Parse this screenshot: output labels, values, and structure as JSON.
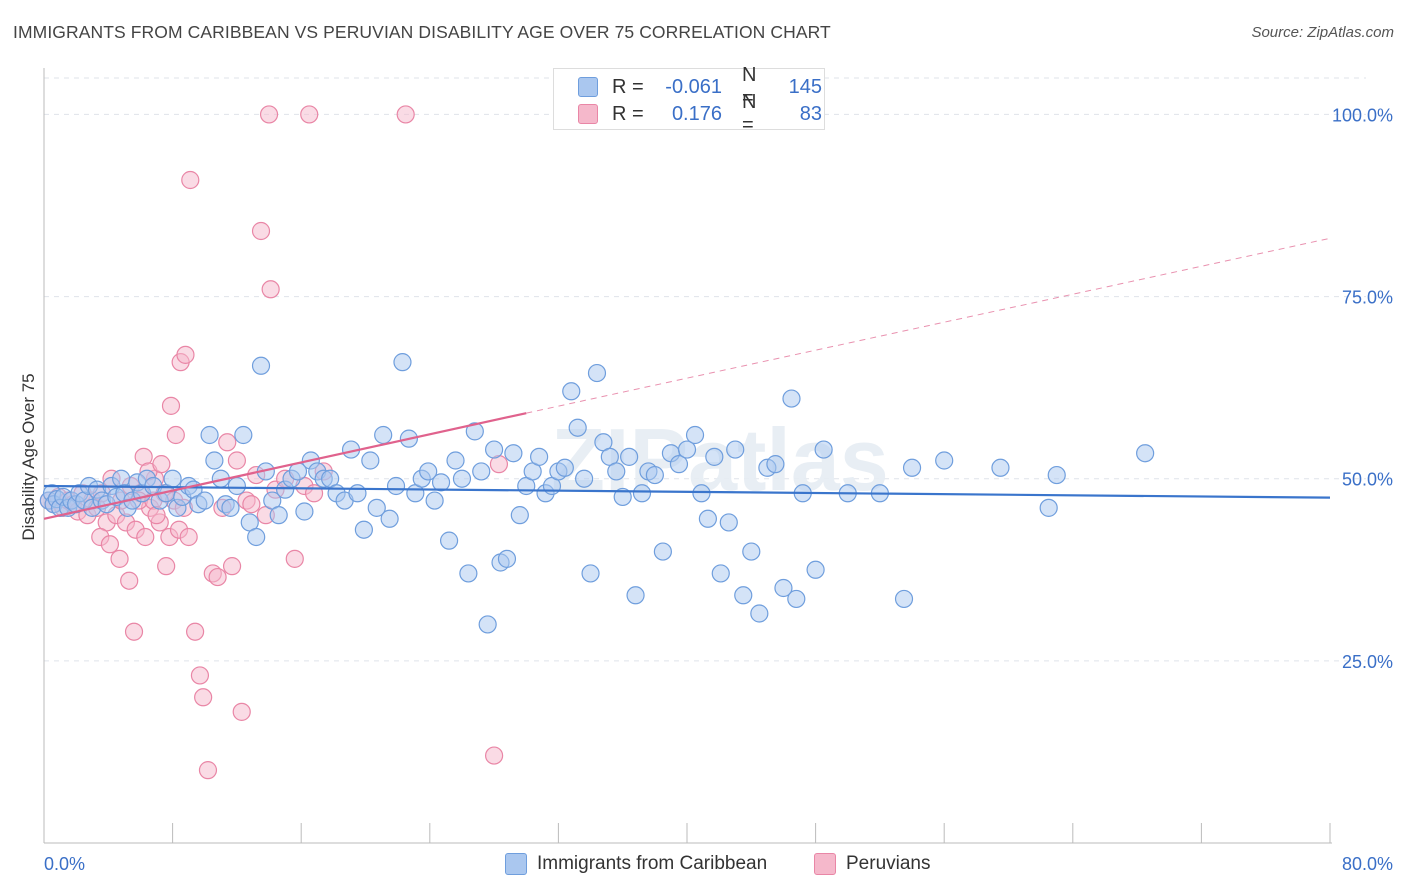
{
  "title": "IMMIGRANTS FROM CARIBBEAN VS PERUVIAN DISABILITY AGE OVER 75 CORRELATION CHART",
  "source": "Source: ZipAtlas.com",
  "watermark": "ZIPatlas",
  "legend": {
    "rows": [
      {
        "r_label": "R =",
        "r_value": "-0.061",
        "n_label": "N =",
        "n_value": "145"
      },
      {
        "r_label": "R =",
        "r_value": "0.176",
        "n_label": "N =",
        "n_value": "83"
      }
    ]
  },
  "chart_data": {
    "type": "scatter",
    "xlabel": "",
    "ylabel": "Disability Age Over 75",
    "x_tick_labels": [
      "0.0%",
      "80.0%"
    ],
    "y_tick_labels": [
      "100.0%",
      "75.0%",
      "50.0%",
      "25.0%"
    ],
    "xlim": [
      0,
      80
    ],
    "ylim": [
      0,
      105
    ],
    "y_ticks": [
      100,
      75,
      50,
      25
    ],
    "grid": true,
    "colors": {
      "caribbean_fill": "#aac7ef",
      "caribbean_stroke": "#6f9edd",
      "caribbean_line": "#3a75cc",
      "peruvian_fill": "#f5b8cb",
      "peruvian_stroke": "#e986a6",
      "peruvian_line": "#e0628d",
      "tick_label": "#3a6fc7"
    },
    "series": [
      {
        "name": "Immigrants from Caribbean",
        "trend": {
          "x0": 0,
          "y0": 49.0,
          "x1": 80,
          "y1": 47.4
        },
        "points": [
          [
            0.3,
            47
          ],
          [
            0.5,
            48
          ],
          [
            0.6,
            46.5
          ],
          [
            0.8,
            47.2
          ],
          [
            1.0,
            46
          ],
          [
            1.2,
            47.5
          ],
          [
            1.5,
            46
          ],
          [
            1.7,
            47
          ],
          [
            2.0,
            46.5
          ],
          [
            2.2,
            48
          ],
          [
            2.5,
            47
          ],
          [
            2.8,
            49
          ],
          [
            3.0,
            46
          ],
          [
            3.3,
            48.5
          ],
          [
            3.6,
            47
          ],
          [
            3.9,
            46.5
          ],
          [
            4.2,
            49
          ],
          [
            4.5,
            47.5
          ],
          [
            4.8,
            50
          ],
          [
            5.0,
            48
          ],
          [
            5.2,
            46
          ],
          [
            5.5,
            47
          ],
          [
            5.8,
            49.5
          ],
          [
            6.1,
            48
          ],
          [
            6.4,
            50
          ],
          [
            6.8,
            49
          ],
          [
            7.2,
            47
          ],
          [
            7.6,
            48
          ],
          [
            8.0,
            50
          ],
          [
            8.3,
            46
          ],
          [
            8.6,
            47.5
          ],
          [
            9.0,
            49
          ],
          [
            9.3,
            48.5
          ],
          [
            9.6,
            46.5
          ],
          [
            10.0,
            47
          ],
          [
            10.3,
            56
          ],
          [
            10.6,
            52.5
          ],
          [
            11.0,
            50
          ],
          [
            11.3,
            46.5
          ],
          [
            11.6,
            46
          ],
          [
            12.0,
            49
          ],
          [
            12.4,
            56
          ],
          [
            12.8,
            44
          ],
          [
            13.2,
            42
          ],
          [
            13.5,
            65.5
          ],
          [
            13.8,
            51
          ],
          [
            14.2,
            47
          ],
          [
            14.6,
            45
          ],
          [
            15.0,
            48.5
          ],
          [
            15.4,
            50
          ],
          [
            15.8,
            51
          ],
          [
            16.2,
            45.5
          ],
          [
            16.6,
            52.5
          ],
          [
            17.0,
            51
          ],
          [
            17.4,
            50
          ],
          [
            17.8,
            50
          ],
          [
            18.2,
            48
          ],
          [
            18.7,
            47
          ],
          [
            19.1,
            54
          ],
          [
            19.5,
            48
          ],
          [
            19.9,
            43
          ],
          [
            20.3,
            52.5
          ],
          [
            20.7,
            46
          ],
          [
            21.1,
            56
          ],
          [
            21.5,
            44.5
          ],
          [
            21.9,
            49
          ],
          [
            22.3,
            66
          ],
          [
            22.7,
            55.5
          ],
          [
            23.1,
            48
          ],
          [
            23.5,
            50
          ],
          [
            23.9,
            51
          ],
          [
            24.3,
            47
          ],
          [
            24.7,
            49.5
          ],
          [
            25.2,
            41.5
          ],
          [
            25.6,
            52.5
          ],
          [
            26.0,
            50
          ],
          [
            26.4,
            37
          ],
          [
            26.8,
            56.5
          ],
          [
            27.2,
            51
          ],
          [
            27.6,
            30
          ],
          [
            28.0,
            54
          ],
          [
            28.4,
            38.5
          ],
          [
            28.8,
            39
          ],
          [
            29.2,
            53.5
          ],
          [
            29.6,
            45
          ],
          [
            30.0,
            49
          ],
          [
            30.4,
            51
          ],
          [
            30.8,
            53
          ],
          [
            31.2,
            48
          ],
          [
            31.6,
            49
          ],
          [
            32.0,
            51
          ],
          [
            32.4,
            51.5
          ],
          [
            32.8,
            62
          ],
          [
            33.2,
            57
          ],
          [
            33.6,
            50
          ],
          [
            34.0,
            37
          ],
          [
            34.4,
            64.5
          ],
          [
            34.8,
            55
          ],
          [
            35.2,
            53
          ],
          [
            35.6,
            51
          ],
          [
            36.0,
            47.5
          ],
          [
            36.4,
            53
          ],
          [
            36.8,
            34
          ],
          [
            37.2,
            48
          ],
          [
            37.6,
            51
          ],
          [
            38.0,
            50.5
          ],
          [
            38.5,
            40
          ],
          [
            39.0,
            53.5
          ],
          [
            39.5,
            52
          ],
          [
            40.0,
            54
          ],
          [
            40.5,
            56
          ],
          [
            40.9,
            48
          ],
          [
            41.3,
            44.5
          ],
          [
            41.7,
            53
          ],
          [
            42.1,
            37
          ],
          [
            42.6,
            44
          ],
          [
            43.0,
            54
          ],
          [
            43.5,
            34
          ],
          [
            44.0,
            40
          ],
          [
            44.5,
            31.5
          ],
          [
            45.0,
            51.5
          ],
          [
            45.5,
            52
          ],
          [
            46.0,
            35
          ],
          [
            46.5,
            61
          ],
          [
            46.8,
            33.5
          ],
          [
            47.2,
            48
          ],
          [
            48.0,
            37.5
          ],
          [
            48.5,
            54
          ],
          [
            50.0,
            48
          ],
          [
            52.0,
            48
          ],
          [
            53.5,
            33.5
          ],
          [
            54.0,
            51.5
          ],
          [
            56.0,
            52.5
          ],
          [
            59.5,
            51.5
          ],
          [
            62.5,
            46
          ],
          [
            63.0,
            50.5
          ],
          [
            68.5,
            53.5
          ]
        ]
      },
      {
        "name": "Peruvians",
        "trend": {
          "x0": 0,
          "y0": 44.5,
          "x1": 30,
          "y1": 59.0,
          "dash_x1": 80,
          "dash_y1": 83.0
        },
        "points": [
          [
            0.3,
            47
          ],
          [
            0.6,
            46.5
          ],
          [
            0.9,
            47.5
          ],
          [
            1.2,
            46
          ],
          [
            1.5,
            47
          ],
          [
            1.8,
            46.5
          ],
          [
            2.1,
            45.5
          ],
          [
            2.4,
            48
          ],
          [
            2.7,
            45
          ],
          [
            3.0,
            47
          ],
          [
            3.3,
            46
          ],
          [
            3.6,
            48
          ],
          [
            3.9,
            44
          ],
          [
            4.2,
            50
          ],
          [
            4.5,
            45
          ],
          [
            4.8,
            47
          ],
          [
            5.1,
            44
          ],
          [
            5.4,
            49
          ],
          [
            5.7,
            43
          ],
          [
            6.0,
            48
          ],
          [
            6.3,
            42
          ],
          [
            6.6,
            46
          ],
          [
            6.9,
            50
          ],
          [
            7.2,
            44
          ],
          [
            7.5,
            48
          ],
          [
            7.8,
            42
          ],
          [
            8.1,
            47
          ],
          [
            8.4,
            43
          ],
          [
            8.7,
            46
          ],
          [
            9.0,
            42
          ],
          [
            3.5,
            42
          ],
          [
            4.1,
            41
          ],
          [
            4.7,
            39
          ],
          [
            5.3,
            36
          ],
          [
            5.6,
            29
          ],
          [
            5.9,
            47
          ],
          [
            6.2,
            53
          ],
          [
            6.5,
            51
          ],
          [
            6.8,
            47
          ],
          [
            7.0,
            45
          ],
          [
            7.3,
            52
          ],
          [
            7.6,
            38
          ],
          [
            7.9,
            60
          ],
          [
            8.2,
            56
          ],
          [
            8.5,
            66
          ],
          [
            8.8,
            67
          ],
          [
            9.1,
            91
          ],
          [
            9.4,
            29
          ],
          [
            9.7,
            23
          ],
          [
            9.9,
            20
          ],
          [
            10.2,
            10
          ],
          [
            10.5,
            37
          ],
          [
            10.8,
            36.5
          ],
          [
            11.1,
            46
          ],
          [
            11.4,
            55
          ],
          [
            11.7,
            38
          ],
          [
            12.0,
            52.5
          ],
          [
            12.3,
            18
          ],
          [
            12.6,
            47
          ],
          [
            12.9,
            46.5
          ],
          [
            13.2,
            50.5
          ],
          [
            13.5,
            84
          ],
          [
            13.8,
            45
          ],
          [
            14.1,
            76
          ],
          [
            14.4,
            48.5
          ],
          [
            15.0,
            50
          ],
          [
            15.6,
            39
          ],
          [
            16.2,
            49
          ],
          [
            16.8,
            48
          ],
          [
            17.4,
            51
          ],
          [
            14.0,
            100
          ],
          [
            16.5,
            100
          ],
          [
            22.5,
            100
          ],
          [
            28.0,
            12
          ],
          [
            28.3,
            52
          ]
        ]
      }
    ]
  }
}
